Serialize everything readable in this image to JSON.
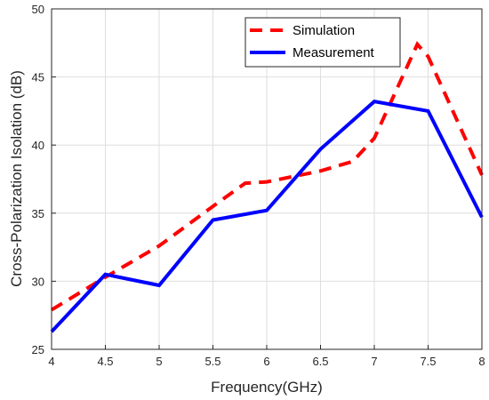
{
  "chart_data": {
    "type": "line",
    "xlabel": "Frequency(GHz)",
    "ylabel": "Cross-Polarization Isolation (dB)",
    "xlim": [
      4,
      8
    ],
    "ylim": [
      25,
      50
    ],
    "x_ticks": [
      "4",
      "4.5",
      "5",
      "5.5",
      "6",
      "6.5",
      "7",
      "7.5",
      "8"
    ],
    "y_ticks": [
      "25",
      "30",
      "35",
      "40",
      "45",
      "50"
    ],
    "grid": true,
    "legend_position": "top-right",
    "series": [
      {
        "name": "Simulation",
        "color": "#ff0000",
        "style": "dashed",
        "x": [
          4.0,
          4.5,
          5.0,
          5.5,
          5.8,
          6.0,
          6.5,
          6.8,
          7.0,
          7.4,
          7.5,
          8.0
        ],
        "y": [
          27.9,
          30.3,
          32.6,
          35.5,
          37.2,
          37.3,
          38.1,
          38.8,
          40.5,
          47.4,
          46.5,
          37.8
        ]
      },
      {
        "name": "Measurement",
        "color": "#0000ff",
        "style": "solid",
        "x": [
          4.0,
          4.5,
          5.0,
          5.5,
          6.0,
          6.5,
          7.0,
          7.5,
          8.0
        ],
        "y": [
          26.3,
          30.5,
          29.7,
          34.5,
          35.2,
          39.7,
          43.2,
          42.5,
          34.7
        ]
      }
    ]
  }
}
